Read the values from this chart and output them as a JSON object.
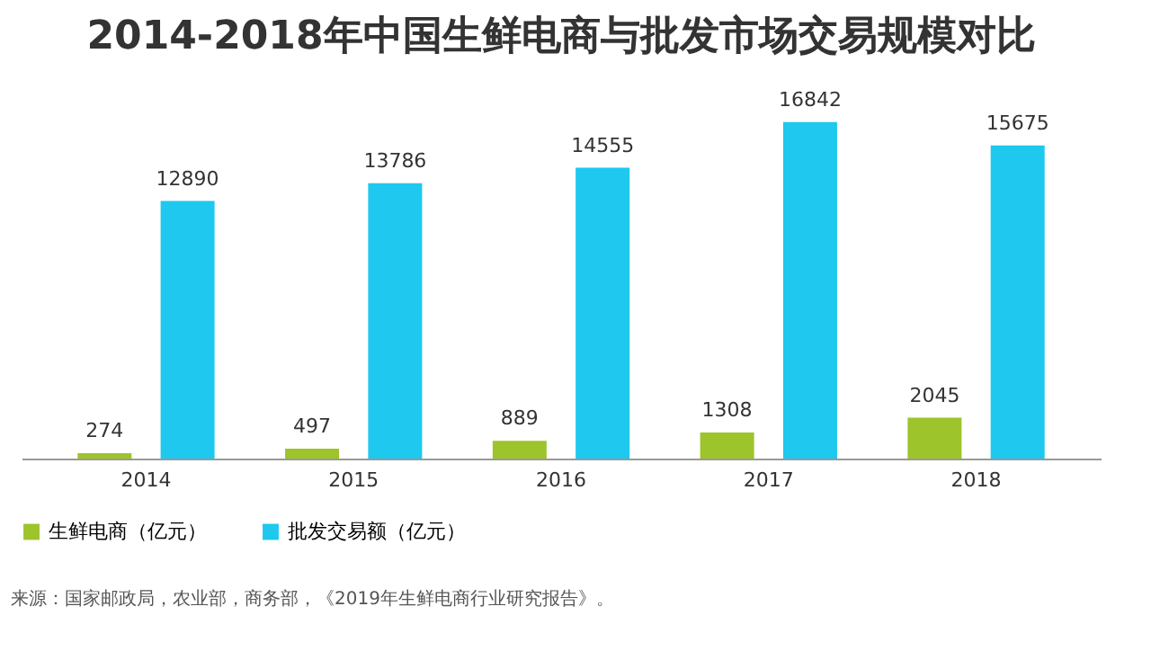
{
  "chart_data": {
    "type": "bar",
    "title": "2014-2018年中国生鲜电商与批发市场交易规模对比",
    "categories": [
      "2014",
      "2015",
      "2016",
      "2017",
      "2018"
    ],
    "series": [
      {
        "name": "生鲜电商（亿元）",
        "color": "#9dc42b",
        "values": [
          274,
          497,
          889,
          1308,
          2045
        ]
      },
      {
        "name": "批发交易额（亿元）",
        "color": "#1ec8ee",
        "values": [
          12890,
          13786,
          14555,
          16842,
          15675
        ]
      }
    ],
    "data_labels": true,
    "legend": "bottom",
    "grid": false,
    "annotations": [
      "来源：国家邮政局，农业部，商务部，《2019年生鲜电商行业研究报告》。"
    ]
  }
}
